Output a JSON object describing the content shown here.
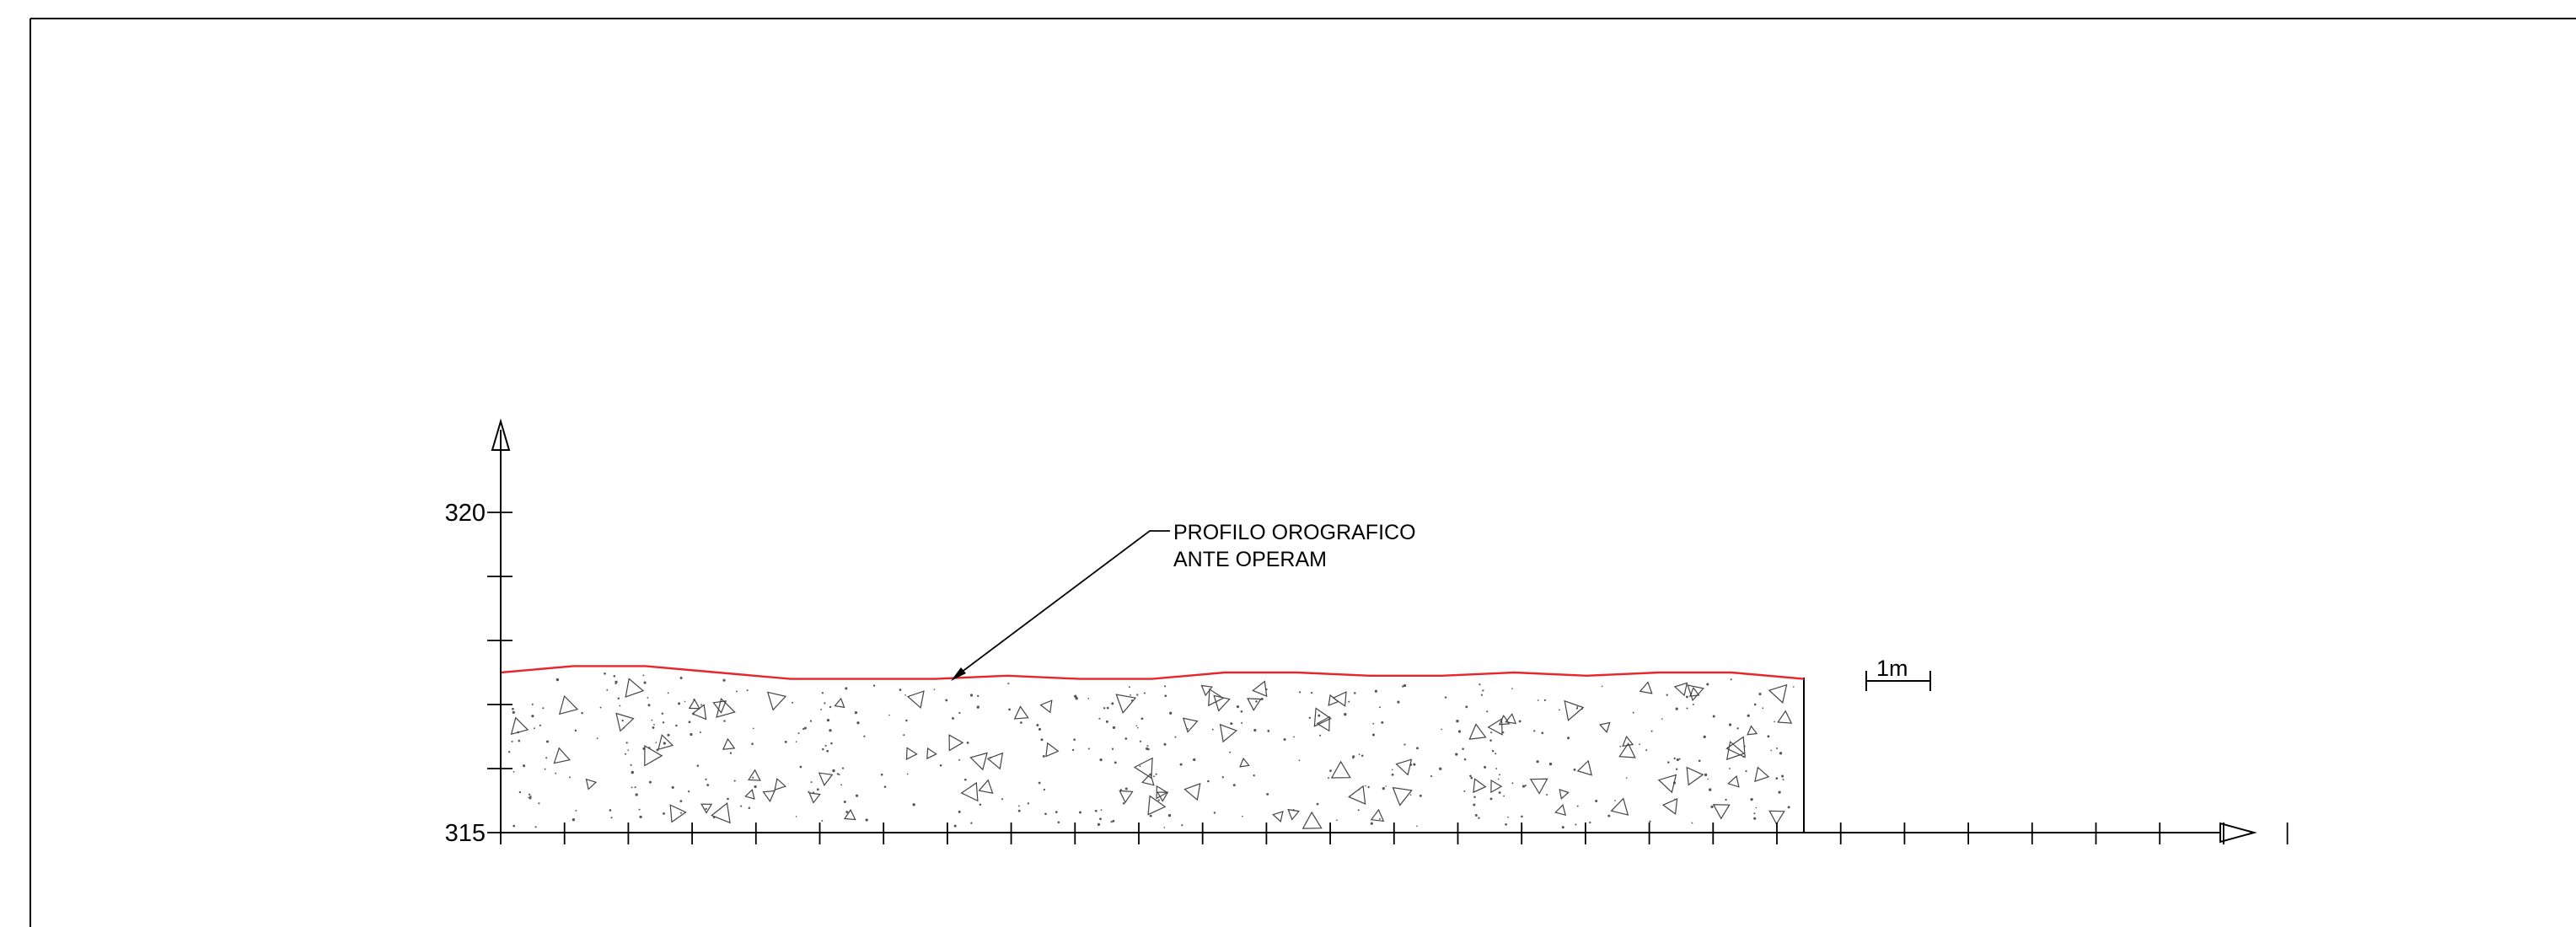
{
  "drawing": {
    "y_axis_labels": [
      "320",
      "315"
    ],
    "annotation_line1": "PROFILO OROGRAFICO",
    "annotation_line2": "ANTE OPERAM",
    "scale_label": "1m"
  },
  "colors": {
    "profile_line": "#e8262a",
    "ink": "#000000",
    "fill_marks": "#555555"
  },
  "profile_elevations_m": [
    317.5,
    317.6,
    317.6,
    317.5,
    317.4,
    317.4,
    317.4,
    317.45,
    317.4,
    317.4,
    317.5,
    317.5,
    317.45,
    317.45,
    317.5,
    317.45,
    317.5,
    317.5,
    317.4
  ],
  "profile_extent_m": {
    "start": 0,
    "end": 20.5
  },
  "axis": {
    "y_min": 315,
    "y_max": 320,
    "x_tick_count": 28
  }
}
